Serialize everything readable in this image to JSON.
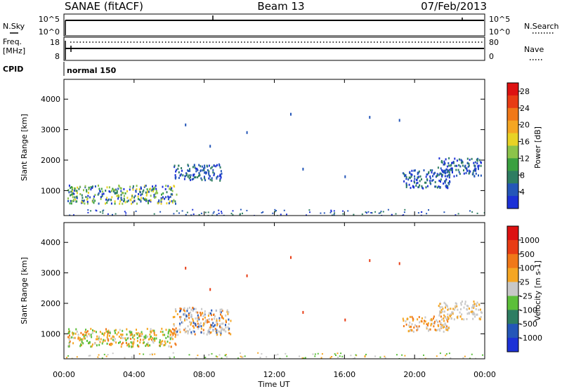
{
  "header": {
    "station": "SANAE (fitACF)",
    "beam": "Beam 13",
    "date": "07/Feb/2013"
  },
  "nsky_panel": {
    "left_label": "N.Sky",
    "right_label": "N.Search",
    "left_ticks": [
      "10^5",
      "10^0"
    ],
    "right_ticks": [
      "10^5",
      "10^0"
    ]
  },
  "freq_panel": {
    "left_label_line1": "Freq.",
    "left_label_line2": "[MHz]",
    "right_label": "Nave",
    "left_ticks": [
      "18",
      "8"
    ],
    "right_ticks": [
      "80",
      "0"
    ]
  },
  "cpid": {
    "label": "CPID",
    "mode": "normal 150"
  },
  "x_axis": {
    "label": "Time UT",
    "range_hours": [
      0,
      24
    ],
    "ticks": [
      "00:00",
      "04:00",
      "08:00",
      "12:00",
      "16:00",
      "20:00",
      "00:00"
    ]
  },
  "chart_data": [
    {
      "type": "heatmap",
      "name": "power",
      "ylabel": "Slant Range [km]",
      "ylim": [
        180,
        4650
      ],
      "y_ticks": [
        "1000",
        "2000",
        "3000",
        "4000"
      ],
      "colorbar_label": "Power [dB]",
      "colorbar_ticks": [
        "4",
        "8",
        "12",
        "16",
        "20",
        "24",
        "28"
      ],
      "colorbar_range": [
        0,
        30
      ],
      "colors": [
        "#1c31d6",
        "#2456b8",
        "#2e7d62",
        "#3aa040",
        "#8cc34a",
        "#e8d225",
        "#f5a623",
        "#f07818",
        "#e83c14",
        "#dd1111"
      ],
      "echo_regions": [
        {
          "t": [
            0.2,
            6.4
          ],
          "r": [
            600,
            1200
          ],
          "level": "high"
        },
        {
          "t": [
            6.2,
            9.0
          ],
          "r": [
            1350,
            1900
          ],
          "level": "low"
        },
        {
          "t": [
            19.3,
            22.0
          ],
          "r": [
            1100,
            1700
          ],
          "level": "low"
        },
        {
          "t": [
            21.3,
            23.8
          ],
          "r": [
            1500,
            2100
          ],
          "level": "low"
        }
      ]
    },
    {
      "type": "heatmap",
      "name": "velocity",
      "ylabel": "Slant Range [km]",
      "ylim": [
        180,
        4650
      ],
      "y_ticks": [
        "1000",
        "2000",
        "3000",
        "4000"
      ],
      "colorbar_label": "Velocity [m s-1]",
      "colorbar_ticks": [
        "1000",
        "500",
        "100",
        "25",
        "-25",
        "-100",
        "-500",
        "-1000"
      ],
      "colorbar_range": [
        -1000,
        1000
      ],
      "colors": [
        "#1c31d6",
        "#2456b8",
        "#2e7d62",
        "#5cbf3a",
        "#c8c8c8",
        "#f5a623",
        "#f07818",
        "#e83c14",
        "#dd1111"
      ],
      "echo_regions": [
        {
          "t": [
            0.2,
            6.4
          ],
          "r": [
            600,
            1200
          ],
          "mix": "green-orange"
        },
        {
          "t": [
            6.2,
            9.5
          ],
          "r": [
            1000,
            1900
          ],
          "mix": "orange-grey"
        },
        {
          "t": [
            19.3,
            22.0
          ],
          "r": [
            1100,
            1600
          ],
          "mix": "orange"
        },
        {
          "t": [
            21.3,
            23.8
          ],
          "r": [
            1500,
            2100
          ],
          "mix": "grey"
        }
      ]
    }
  ]
}
